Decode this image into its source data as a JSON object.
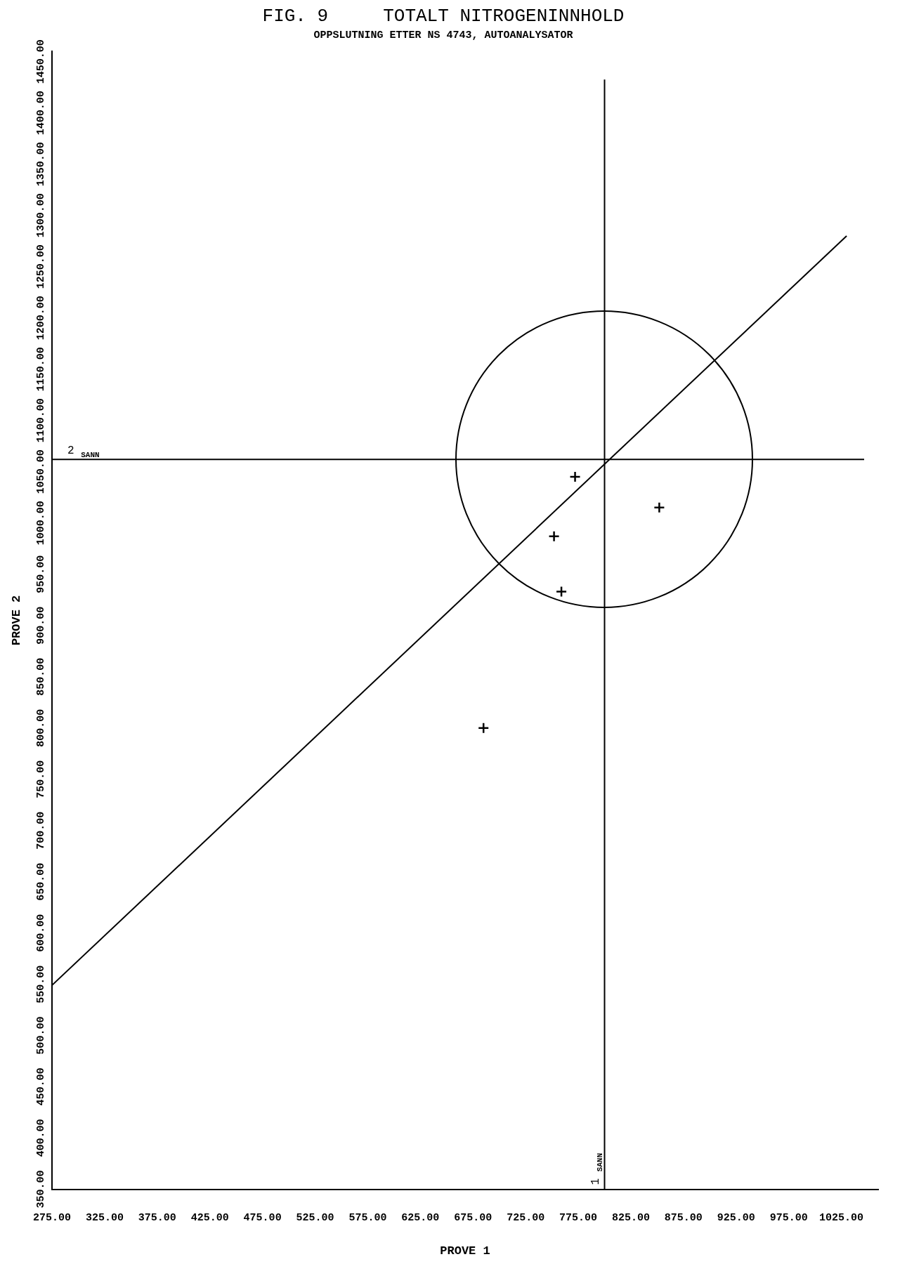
{
  "chart_data": {
    "type": "scatter",
    "title": "FIG. 9     TOTALT NITROGENINNHOLD",
    "subtitle": "OPPSLUTNING ETTER NS 4743, AUTOANALYSATOR",
    "xlabel": "PROVE 1",
    "ylabel": "PROVE 2",
    "legend": false,
    "grid": false,
    "xlim": [
      275,
      1060
    ],
    "ylim": [
      350,
      1460
    ],
    "xticks": [
      {
        "value": 275,
        "label": "275.00"
      },
      {
        "value": 325,
        "label": "325.00"
      },
      {
        "value": 375,
        "label": "375.00"
      },
      {
        "value": 425,
        "label": "425.00"
      },
      {
        "value": 475,
        "label": "475.00"
      },
      {
        "value": 525,
        "label": "525.00"
      },
      {
        "value": 575,
        "label": "575.00"
      },
      {
        "value": 625,
        "label": "625.00"
      },
      {
        "value": 675,
        "label": "675.00"
      },
      {
        "value": 725,
        "label": "725.00"
      },
      {
        "value": 775,
        "label": "775.00"
      },
      {
        "value": 825,
        "label": "825.00"
      },
      {
        "value": 875,
        "label": "875.00"
      },
      {
        "value": 925,
        "label": "925.00"
      },
      {
        "value": 975,
        "label": "975.00"
      },
      {
        "value": 1025,
        "label": "1025.00"
      }
    ],
    "yticks": [
      {
        "value": 350,
        "label": "350.00"
      },
      {
        "value": 400,
        "label": "400.00"
      },
      {
        "value": 450,
        "label": "450.00"
      },
      {
        "value": 500,
        "label": "500.00"
      },
      {
        "value": 550,
        "label": "550.00"
      },
      {
        "value": 600,
        "label": "600.00"
      },
      {
        "value": 650,
        "label": "650.00"
      },
      {
        "value": 700,
        "label": "700.00"
      },
      {
        "value": 750,
        "label": "750.00"
      },
      {
        "value": 800,
        "label": "800.00"
      },
      {
        "value": 850,
        "label": "850.00"
      },
      {
        "value": 900,
        "label": "900.00"
      },
      {
        "value": 950,
        "label": "950.00"
      },
      {
        "value": 1000,
        "label": "1000.00"
      },
      {
        "value": 1050,
        "label": "1050.00"
      },
      {
        "value": 1100,
        "label": "1100.00"
      },
      {
        "value": 1150,
        "label": "1150.00"
      },
      {
        "value": 1200,
        "label": "1200.00"
      },
      {
        "value": 1250,
        "label": "1250.00"
      },
      {
        "value": 1300,
        "label": "1300.00"
      },
      {
        "value": 1350,
        "label": "1350.00"
      },
      {
        "value": 1400,
        "label": "1400.00"
      },
      {
        "value": 1450,
        "label": "1450.00"
      }
    ],
    "ref_lines": [
      {
        "axis": "x",
        "value": 800,
        "label": "1$_{SANN}$",
        "color": "#000000"
      },
      {
        "axis": "y",
        "value": 1062,
        "label": "2$_{SANN}$",
        "color": "#000000"
      }
    ],
    "series": [
      {
        "color": "#000000",
        "marker": "cross",
        "x": [
          772,
          852,
          752,
          759,
          685
        ],
        "values": [
          1045,
          1015,
          987,
          933,
          800
        ]
      },
      {
        "type": "line",
        "marker": "none",
        "color": "#000000",
        "x": [
          275,
          1030
        ],
        "values": [
          549,
          1280
        ]
      }
    ]
  }
}
